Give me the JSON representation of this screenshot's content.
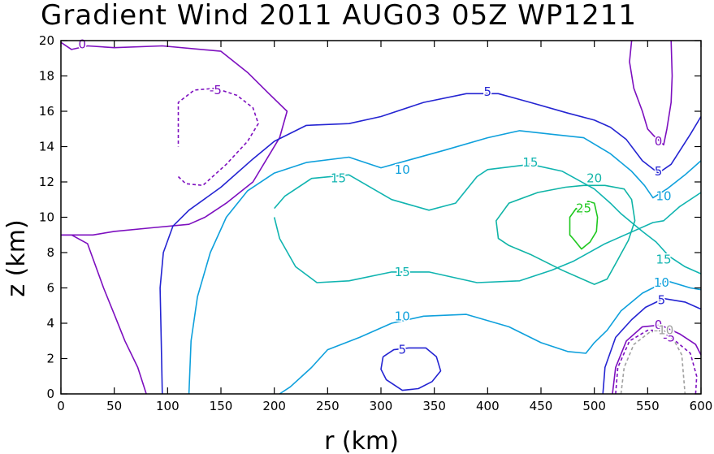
{
  "chart_data": {
    "type": "contour",
    "title": "Gradient Wind 2011 AUG03 05Z  WP1211",
    "xlabel": "r (km)",
    "ylabel": "z (km)",
    "xlim": [
      0,
      600
    ],
    "ylim": [
      0,
      20
    ],
    "xticks": [
      "0",
      "50",
      "100",
      "150",
      "200",
      "250",
      "300",
      "350",
      "400",
      "450",
      "500",
      "550",
      "600"
    ],
    "yticks": [
      "0",
      "2",
      "4",
      "6",
      "8",
      "10",
      "12",
      "14",
      "16",
      "18",
      "20"
    ],
    "grid": false,
    "level_colors": {
      "-10": "#a0a0a0",
      "-5": "#7d0fbf",
      "0": "#7d0fbf",
      "5": "#2424d2",
      "10": "#0ea0dc",
      "15": "#10b4b0",
      "20": "#0fb4a6",
      "25": "#1ec81e"
    },
    "contours": [
      {
        "level": "0",
        "dashed": false,
        "points": [
          [
            0,
            9
          ],
          [
            10,
            9
          ],
          [
            25,
            8.5
          ],
          [
            40,
            6
          ],
          [
            50,
            4.5
          ],
          [
            60,
            3
          ],
          [
            72,
            1.5
          ],
          [
            80,
            0
          ]
        ]
      },
      {
        "level": "0",
        "dashed": false,
        "points": [
          [
            0,
            19.9
          ],
          [
            10,
            19.5
          ],
          [
            25,
            19.7
          ],
          [
            50,
            19.6
          ],
          [
            95,
            19.7
          ],
          [
            150,
            19.4
          ],
          [
            175,
            18.2
          ],
          [
            195,
            17
          ],
          [
            212,
            16
          ],
          [
            205,
            14.5
          ],
          [
            180,
            12
          ],
          [
            155,
            10.8
          ],
          [
            135,
            10
          ],
          [
            120,
            9.6
          ],
          [
            85,
            9.4
          ],
          [
            50,
            9.2
          ],
          [
            30,
            9
          ],
          [
            0,
            9
          ]
        ]
      },
      {
        "level": "0",
        "dashed": false,
        "points": [
          [
            535,
            20
          ],
          [
            533,
            18.8
          ],
          [
            537,
            17.3
          ],
          [
            545,
            16
          ],
          [
            550,
            15
          ],
          [
            556,
            14.6
          ],
          [
            565,
            14.1
          ],
          [
            568,
            15
          ],
          [
            572,
            16.5
          ],
          [
            573,
            18
          ],
          [
            572,
            20
          ]
        ]
      },
      {
        "level": "0",
        "dashed": false,
        "points": [
          [
            517,
            0
          ],
          [
            520,
            1.5
          ],
          [
            530,
            3
          ],
          [
            545,
            3.8
          ],
          [
            562,
            3.9
          ],
          [
            580,
            3.4
          ],
          [
            595,
            2.8
          ],
          [
            600,
            2.2
          ]
        ]
      },
      {
        "level": "-5",
        "dashed": true,
        "points": [
          [
            110,
            12.3
          ],
          [
            117,
            11.9
          ],
          [
            133,
            11.8
          ],
          [
            155,
            13
          ],
          [
            175,
            14.3
          ],
          [
            185,
            15.3
          ],
          [
            180,
            16.2
          ],
          [
            165,
            16.9
          ],
          [
            145,
            17.3
          ],
          [
            125,
            17.2
          ],
          [
            110,
            16.5
          ],
          [
            110,
            14
          ]
        ]
      },
      {
        "level": "-5",
        "dashed": true,
        "points": [
          [
            520,
            0
          ],
          [
            522,
            1.5
          ],
          [
            533,
            3
          ],
          [
            550,
            3.6
          ],
          [
            560,
            3.6
          ],
          [
            572,
            3.2
          ],
          [
            580,
            2.8
          ],
          [
            590,
            2.3
          ],
          [
            596,
            1
          ],
          [
            595,
            0
          ]
        ]
      },
      {
        "level": "-10",
        "dashed": true,
        "points": [
          [
            525,
            0
          ],
          [
            528,
            1.5
          ],
          [
            537,
            2.8
          ],
          [
            552,
            3.5
          ],
          [
            565,
            3.6
          ],
          [
            575,
            3
          ],
          [
            582,
            2.2
          ],
          [
            585,
            0
          ]
        ]
      },
      {
        "level": "5",
        "dashed": false,
        "points": [
          [
            95,
            0
          ],
          [
            94,
            3
          ],
          [
            93,
            6
          ],
          [
            96,
            8
          ],
          [
            105,
            9.5
          ],
          [
            120,
            10.4
          ],
          [
            150,
            11.7
          ],
          [
            180,
            13.3
          ],
          [
            200,
            14.3
          ],
          [
            230,
            15.2
          ],
          [
            270,
            15.3
          ],
          [
            300,
            15.7
          ],
          [
            340,
            16.5
          ],
          [
            380,
            17
          ],
          [
            410,
            17
          ],
          [
            440,
            16.5
          ],
          [
            475,
            15.9
          ],
          [
            500,
            15.5
          ],
          [
            515,
            15.1
          ],
          [
            530,
            14.4
          ],
          [
            545,
            13.2
          ],
          [
            560,
            12.5
          ],
          [
            572,
            13
          ],
          [
            590,
            14.7
          ],
          [
            600,
            15.7
          ]
        ]
      },
      {
        "level": "5",
        "dashed": false,
        "points": [
          [
            302,
            2.1
          ],
          [
            300,
            1.4
          ],
          [
            305,
            0.8
          ],
          [
            320,
            0.2
          ],
          [
            335,
            0.3
          ],
          [
            348,
            0.7
          ],
          [
            356,
            1.3
          ],
          [
            352,
            2.1
          ],
          [
            342,
            2.6
          ],
          [
            326,
            2.6
          ],
          [
            312,
            2.5
          ],
          [
            302,
            2.1
          ]
        ]
      },
      {
        "level": "5",
        "dashed": false,
        "points": [
          [
            508,
            0
          ],
          [
            510,
            1.5
          ],
          [
            520,
            3.2
          ],
          [
            535,
            4.2
          ],
          [
            548,
            4.9
          ],
          [
            565,
            5.4
          ],
          [
            585,
            5.2
          ],
          [
            600,
            4.8
          ]
        ]
      },
      {
        "level": "10",
        "dashed": false,
        "points": [
          [
            120,
            0
          ],
          [
            122,
            3
          ],
          [
            128,
            5.5
          ],
          [
            140,
            8
          ],
          [
            155,
            10
          ],
          [
            175,
            11.5
          ],
          [
            200,
            12.5
          ],
          [
            230,
            13.1
          ],
          [
            270,
            13.4
          ],
          [
            300,
            12.8
          ],
          [
            330,
            13.3
          ],
          [
            360,
            13.8
          ],
          [
            400,
            14.5
          ],
          [
            430,
            14.9
          ],
          [
            460,
            14.7
          ],
          [
            490,
            14.5
          ],
          [
            515,
            13.6
          ],
          [
            535,
            12.6
          ],
          [
            547,
            11.8
          ],
          [
            555,
            11.1
          ],
          [
            568,
            11.6
          ],
          [
            585,
            12.4
          ],
          [
            600,
            13.2
          ]
        ]
      },
      {
        "level": "10",
        "dashed": false,
        "points": [
          [
            205,
            0
          ],
          [
            215,
            0.4
          ],
          [
            235,
            1.5
          ],
          [
            250,
            2.5
          ],
          [
            280,
            3.2
          ],
          [
            310,
            4
          ],
          [
            340,
            4.4
          ],
          [
            380,
            4.5
          ],
          [
            420,
            3.8
          ],
          [
            450,
            2.9
          ],
          [
            475,
            2.4
          ],
          [
            492,
            2.3
          ],
          [
            500,
            2.9
          ],
          [
            512,
            3.6
          ],
          [
            525,
            4.7
          ],
          [
            545,
            5.7
          ],
          [
            568,
            6.4
          ],
          [
            590,
            6
          ],
          [
            600,
            5.9
          ]
        ]
      },
      {
        "level": "15",
        "dashed": false,
        "points": [
          [
            200,
            10
          ],
          [
            205,
            8.8
          ],
          [
            220,
            7.2
          ],
          [
            240,
            6.3
          ],
          [
            270,
            6.4
          ],
          [
            310,
            6.9
          ],
          [
            345,
            6.9
          ],
          [
            390,
            6.3
          ],
          [
            430,
            6.4
          ],
          [
            460,
            7
          ],
          [
            480,
            7.5
          ],
          [
            510,
            8.5
          ],
          [
            540,
            9.3
          ],
          [
            555,
            9.7
          ],
          [
            565,
            9.8
          ],
          [
            580,
            10.6
          ],
          [
            600,
            11.4
          ]
        ]
      },
      {
        "level": "15",
        "dashed": false,
        "points": [
          [
            200,
            10.5
          ],
          [
            210,
            11.2
          ],
          [
            235,
            12.2
          ],
          [
            270,
            12.4
          ],
          [
            310,
            11
          ],
          [
            345,
            10.4
          ],
          [
            370,
            10.8
          ],
          [
            390,
            12.3
          ],
          [
            400,
            12.7
          ],
          [
            440,
            13
          ],
          [
            470,
            12.6
          ],
          [
            500,
            11.6
          ],
          [
            515,
            10.8
          ],
          [
            525,
            10.2
          ],
          [
            545,
            9.2
          ],
          [
            558,
            8.6
          ],
          [
            570,
            7.8
          ],
          [
            585,
            7.2
          ],
          [
            600,
            6.8
          ]
        ]
      },
      {
        "level": "20",
        "dashed": false,
        "points": [
          [
            473,
            11.7
          ],
          [
            447,
            11.4
          ],
          [
            420,
            10.8
          ],
          [
            408,
            9.8
          ],
          [
            410,
            8.8
          ],
          [
            420,
            8.4
          ],
          [
            440,
            7.9
          ],
          [
            470,
            7
          ],
          [
            500,
            6.2
          ],
          [
            512,
            6.5
          ],
          [
            522,
            7.6
          ],
          [
            532,
            8.7
          ],
          [
            538,
            9.8
          ],
          [
            535,
            11
          ],
          [
            528,
            11.6
          ],
          [
            510,
            11.8
          ],
          [
            490,
            11.8
          ],
          [
            473,
            11.7
          ]
        ]
      },
      {
        "level": "25",
        "dashed": false,
        "points": [
          [
            488,
            10.2
          ],
          [
            483,
            10.5
          ],
          [
            477,
            10
          ],
          [
            477,
            9
          ],
          [
            480,
            8.8
          ],
          [
            488,
            8.2
          ],
          [
            496,
            8.6
          ],
          [
            502,
            9.2
          ],
          [
            503,
            10
          ],
          [
            500,
            10.8
          ],
          [
            494,
            10.9
          ],
          [
            488,
            10.2
          ]
        ]
      }
    ],
    "contour_labels": [
      {
        "text": "0",
        "x": 20,
        "y": 19.8,
        "level": "0"
      },
      {
        "text": "-5",
        "x": 145,
        "y": 17.2,
        "level": "-5"
      },
      {
        "text": "5",
        "x": 400,
        "y": 17.1,
        "level": "5"
      },
      {
        "text": "10",
        "x": 320,
        "y": 12.7,
        "level": "10"
      },
      {
        "text": "15",
        "x": 260,
        "y": 12.2,
        "level": "15"
      },
      {
        "text": "15",
        "x": 440,
        "y": 13.1,
        "level": "15"
      },
      {
        "text": "20",
        "x": 500,
        "y": 12.2,
        "level": "20"
      },
      {
        "text": "25",
        "x": 490,
        "y": 10.5,
        "level": "25"
      },
      {
        "text": "0",
        "x": 560,
        "y": 14.3,
        "level": "0"
      },
      {
        "text": "5",
        "x": 560,
        "y": 12.6,
        "level": "5"
      },
      {
        "text": "10",
        "x": 565,
        "y": 11.2,
        "level": "10"
      },
      {
        "text": "15",
        "x": 320,
        "y": 6.9,
        "level": "15"
      },
      {
        "text": "15",
        "x": 565,
        "y": 7.6,
        "level": "15"
      },
      {
        "text": "10",
        "x": 320,
        "y": 4.4,
        "level": "10"
      },
      {
        "text": "10",
        "x": 563,
        "y": 6.3,
        "level": "10"
      },
      {
        "text": "5",
        "x": 320,
        "y": 2.5,
        "level": "5"
      },
      {
        "text": "5",
        "x": 563,
        "y": 5.3,
        "level": "5"
      },
      {
        "text": "0",
        "x": 560,
        "y": 3.9,
        "level": "0"
      },
      {
        "text": "-5",
        "x": 570,
        "y": 3.2,
        "level": "-5"
      },
      {
        "text": "-10",
        "x": 565,
        "y": 3.6,
        "level": "-10"
      }
    ]
  }
}
